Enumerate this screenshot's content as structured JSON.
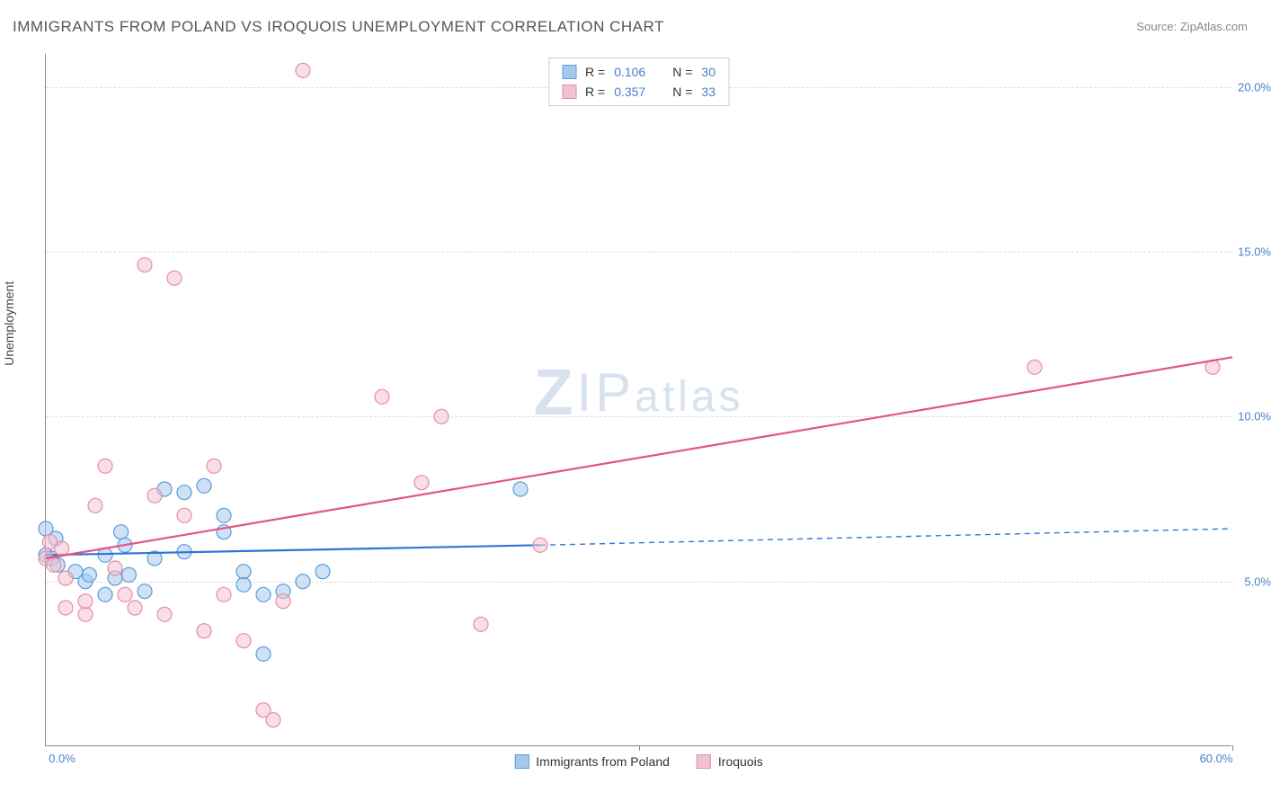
{
  "title": "IMMIGRANTS FROM POLAND VS IROQUOIS UNEMPLOYMENT CORRELATION CHART",
  "source_label": "Source:",
  "source_name": "ZipAtlas.com",
  "watermark": "ZIPatlas",
  "yaxis_label": "Unemployment",
  "chart": {
    "type": "scatter",
    "background_color": "#ffffff",
    "grid_color": "#dddddd",
    "axis_color": "#888888",
    "tick_label_color": "#4a7ec9",
    "axis_label_color": "#444444",
    "xlim": [
      0,
      60
    ],
    "ylim": [
      0,
      21
    ],
    "xtick_values": [
      0,
      30,
      60
    ],
    "xtick_labels": [
      "0.0%",
      "",
      "60.0%"
    ],
    "ytick_values": [
      5,
      10,
      15,
      20
    ],
    "ytick_labels": [
      "5.0%",
      "10.0%",
      "15.0%",
      "20.0%"
    ],
    "marker_radius": 8,
    "marker_opacity": 0.55,
    "trend_line_width": 2.2,
    "dash_pattern": "6 5",
    "series": [
      {
        "name": "Immigrants from Poland",
        "legend_label": "Immigrants from Poland",
        "color_fill": "#a6c8ee",
        "color_stroke": "#5b9bd5",
        "trend_color": "#2e75d6",
        "R_label": "R =",
        "R_value": "0.106",
        "N_label": "N =",
        "N_value": "30",
        "trend": {
          "x1": 0,
          "y1": 5.8,
          "x2_solid": 25,
          "y2_solid": 6.1,
          "x2": 60,
          "y2": 6.6
        },
        "points": [
          [
            0,
            6.6
          ],
          [
            0,
            5.8
          ],
          [
            0.3,
            5.7
          ],
          [
            0.5,
            6.3
          ],
          [
            0.6,
            5.5
          ],
          [
            1.5,
            5.3
          ],
          [
            2,
            5.0
          ],
          [
            2.2,
            5.2
          ],
          [
            3,
            5.8
          ],
          [
            3,
            4.6
          ],
          [
            3.5,
            5.1
          ],
          [
            3.8,
            6.5
          ],
          [
            4,
            6.1
          ],
          [
            4.2,
            5.2
          ],
          [
            5,
            4.7
          ],
          [
            5.5,
            5.7
          ],
          [
            6,
            7.8
          ],
          [
            7,
            5.9
          ],
          [
            7,
            7.7
          ],
          [
            8,
            7.9
          ],
          [
            9,
            7.0
          ],
          [
            9,
            6.5
          ],
          [
            10,
            4.9
          ],
          [
            10,
            5.3
          ],
          [
            11,
            4.6
          ],
          [
            11,
            2.8
          ],
          [
            12,
            4.7
          ],
          [
            13,
            5.0
          ],
          [
            14,
            5.3
          ],
          [
            24,
            7.8
          ]
        ]
      },
      {
        "name": "Iroquois",
        "legend_label": "Iroquois",
        "color_fill": "#f4c2cf",
        "color_stroke": "#e98aa8",
        "trend_color": "#e25582",
        "R_label": "R =",
        "R_value": "0.357",
        "N_label": "N =",
        "N_value": "33",
        "trend": {
          "x1": 0,
          "y1": 5.7,
          "x2_solid": 60,
          "y2_solid": 11.8,
          "x2": 60,
          "y2": 11.8
        },
        "points": [
          [
            0,
            5.7
          ],
          [
            0.4,
            5.5
          ],
          [
            0.8,
            6.0
          ],
          [
            1,
            4.2
          ],
          [
            1,
            5.1
          ],
          [
            2,
            4.0
          ],
          [
            2,
            4.4
          ],
          [
            2.5,
            7.3
          ],
          [
            3,
            8.5
          ],
          [
            3.5,
            5.4
          ],
          [
            4,
            4.6
          ],
          [
            4.5,
            4.2
          ],
          [
            5,
            14.6
          ],
          [
            5.5,
            7.6
          ],
          [
            6,
            4.0
          ],
          [
            6.5,
            14.2
          ],
          [
            7,
            7.0
          ],
          [
            8,
            3.5
          ],
          [
            8.5,
            8.5
          ],
          [
            9,
            4.6
          ],
          [
            10,
            3.2
          ],
          [
            11,
            1.1
          ],
          [
            11.5,
            0.8
          ],
          [
            12,
            4.4
          ],
          [
            13,
            20.5
          ],
          [
            17,
            10.6
          ],
          [
            19,
            8.0
          ],
          [
            20,
            10.0
          ],
          [
            22,
            3.7
          ],
          [
            25,
            6.1
          ],
          [
            50,
            11.5
          ],
          [
            59,
            11.5
          ],
          [
            0.2,
            6.2
          ]
        ]
      }
    ]
  }
}
